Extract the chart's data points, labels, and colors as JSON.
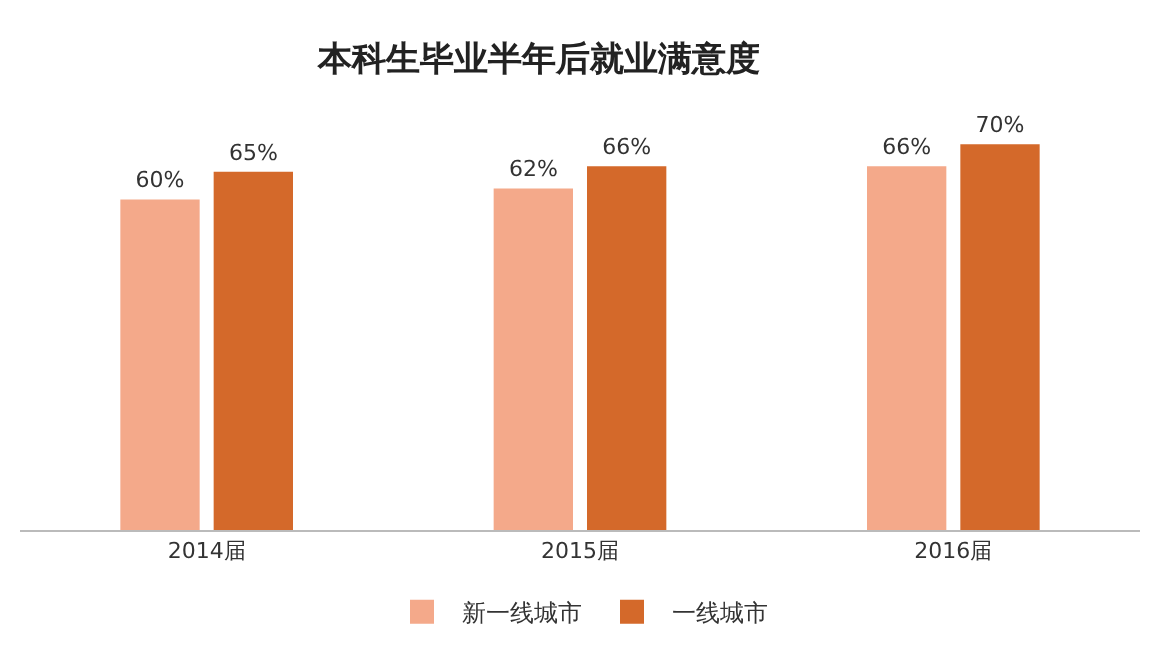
{
  "chart_data": {
    "type": "bar",
    "title": "本科生毕业半年后就业满意度",
    "categories": [
      "2014届",
      "2015届",
      "2016届"
    ],
    "series": [
      {
        "name": "新一线城市",
        "color": "#f4a98a",
        "values": [
          60,
          62,
          66
        ],
        "value_labels": [
          "60%",
          "62%",
          "66%"
        ]
      },
      {
        "name": "一线城市",
        "color": "#d4692a",
        "values": [
          65,
          66,
          70
        ],
        "value_labels": [
          "65%",
          "66%",
          "70%"
        ]
      }
    ],
    "legend": "bottom"
  }
}
